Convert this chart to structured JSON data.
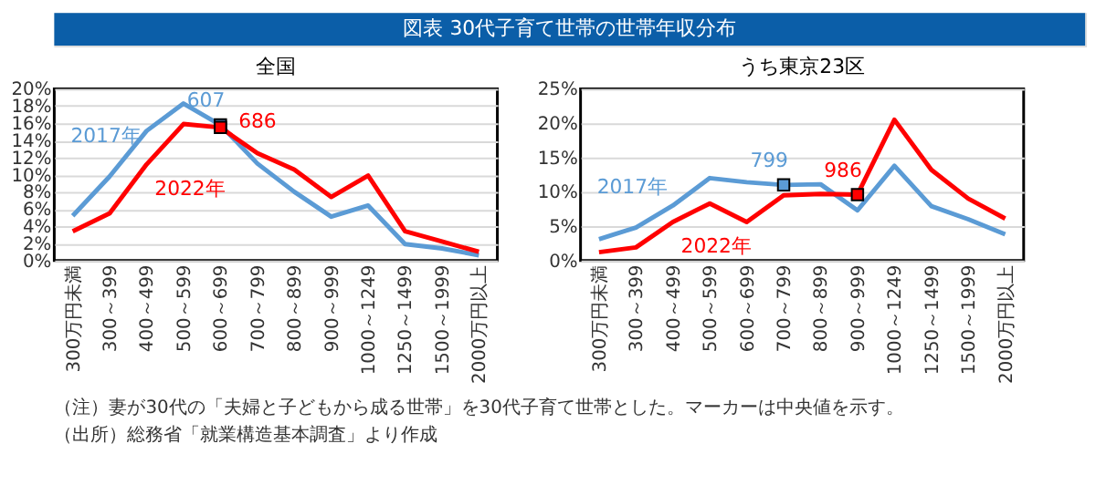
{
  "chart_data": [
    {
      "type": "other",
      "title": "図表 30代子育て世帯の世帯年収分布",
      "annotations": [
        "（注）妻が30代の「夫婦と子どもから成る世帯」を30代子育て世帯とした。マーカーは中央値を示す。",
        "（出所）総務省「就業構造基本調査」より作成"
      ]
    },
    {
      "type": "line",
      "title": "全国",
      "categories": [
        "300万円未満",
        "300～399",
        "400～499",
        "500～599",
        "600～699",
        "700～799",
        "800～899",
        "900～999",
        "1000～1249",
        "1250～1499",
        "1500～1999",
        "2000万円以上"
      ],
      "series": [
        {
          "name": "2017年",
          "color": "#5b9bd5",
          "values": [
            5.2,
            9.8,
            15.1,
            18.3,
            15.8,
            11.3,
            8.0,
            5.1,
            6.4,
            1.9,
            1.4,
            0.6
          ]
        },
        {
          "name": "2022年",
          "color": "#ff0000",
          "values": [
            3.4,
            5.5,
            11.2,
            15.9,
            15.5,
            12.5,
            10.6,
            7.4,
            9.9,
            3.4,
            2.2,
            1.0
          ]
        }
      ],
      "ylim": [
        0,
        20
      ],
      "yticks": [
        {
          "value": 0,
          "label": "0%"
        },
        {
          "value": 2,
          "label": "2%"
        },
        {
          "value": 4,
          "label": "4%"
        },
        {
          "value": 6,
          "label": "6%"
        },
        {
          "value": 8,
          "label": "8%"
        },
        {
          "value": 10,
          "label": "10%"
        },
        {
          "value": 12,
          "label": "12%"
        },
        {
          "value": 14,
          "label": "14%"
        },
        {
          "value": 16,
          "label": "16%"
        },
        {
          "value": 18,
          "label": "18%"
        },
        {
          "value": 20,
          "label": "20%"
        }
      ],
      "grid": "y",
      "legend": false,
      "annotations": [
        {
          "text": "607",
          "x": "600～699",
          "y": 15.8
        },
        {
          "text": "686",
          "x": "600～699",
          "y": 15.5
        }
      ]
    },
    {
      "type": "line",
      "title": "うち東京23区",
      "categories": [
        "300万円未満",
        "300～399",
        "400～499",
        "500～599",
        "600～699",
        "700～799",
        "800～899",
        "900～999",
        "1000～1249",
        "1250～1499",
        "1500～1999",
        "2000万円以上"
      ],
      "series": [
        {
          "name": "2017年",
          "color": "#5b9bd5",
          "values": [
            3.1,
            4.8,
            8.0,
            12.0,
            11.4,
            11.0,
            11.1,
            7.3,
            13.8,
            7.9,
            6.0,
            3.8
          ]
        },
        {
          "name": "2022年",
          "color": "#ff0000",
          "values": [
            1.2,
            1.9,
            5.6,
            8.3,
            5.6,
            9.5,
            9.7,
            9.6,
            20.5,
            13.2,
            9.0,
            6.1
          ]
        }
      ],
      "ylim": [
        0,
        25
      ],
      "yticks": [
        {
          "value": 0,
          "label": "0%"
        },
        {
          "value": 5,
          "label": "5%"
        },
        {
          "value": 10,
          "label": "10%"
        },
        {
          "value": 15,
          "label": "15%"
        },
        {
          "value": 20,
          "label": "20%"
        },
        {
          "value": 25,
          "label": "25%"
        }
      ],
      "grid": "y",
      "legend": false,
      "annotations": [
        {
          "text": "799",
          "x": "700～799",
          "y": 11.0
        },
        {
          "text": "986",
          "x": "900～999",
          "y": 9.6
        }
      ]
    }
  ]
}
